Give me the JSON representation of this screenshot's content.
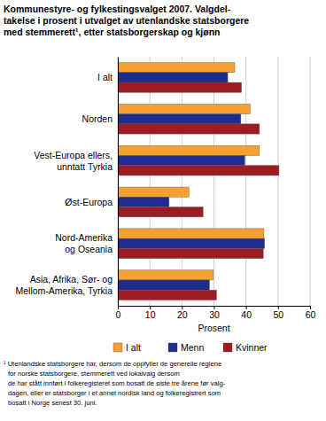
{
  "chart_data": {
    "type": "bar",
    "orientation": "horizontal",
    "title": "Kommunestyre- og fylkestingsvalget 2007. Valgdel-\ntakelse i prosent i utvalget av utenlandske statsborgere\nmed stemmerett¹, etter statsborgerskap og kjønn",
    "x_label": "Prosent",
    "categories": [
      "I alt",
      "Norden",
      "Vest-Europa ellers,\nunntatt Tyrkia",
      "Øst-Europa",
      "Nord-Amerika\nog Oseania",
      "Asia, Afrika, Sør- og\nMellom-Amerika, Tyrkia"
    ],
    "series": [
      {
        "name": "I alt",
        "color": "#f5a033",
        "values": [
          36.5,
          41.3,
          44.2,
          22.2,
          45.6,
          29.8
        ]
      },
      {
        "name": "Menn",
        "color": "#1f2d8f",
        "values": [
          34.3,
          38.4,
          39.6,
          16.0,
          45.8,
          28.6
        ]
      },
      {
        "name": "Kvinner",
        "color": "#9c1c22",
        "values": [
          38.6,
          44.2,
          50.3,
          26.6,
          45.4,
          30.8
        ]
      }
    ],
    "xlim": [
      0,
      60
    ],
    "xticks": [
      0,
      10,
      20,
      30,
      40,
      50,
      60
    ],
    "grid": true,
    "legend": "bottom",
    "footnote": "¹ Utenlandske statsborgere har, dersom de oppfyller de generelle reglene\nfor norske statsborgere, stemmerett ved lokalvalg dersom\nde har stått innført i folkeregisteret som bosatt de siste tre årene før valg-\ndagen, eller er statsborger i et annet nordisk land og folkeregistrert som\nbosatt i Norge senest 30. juni."
  }
}
